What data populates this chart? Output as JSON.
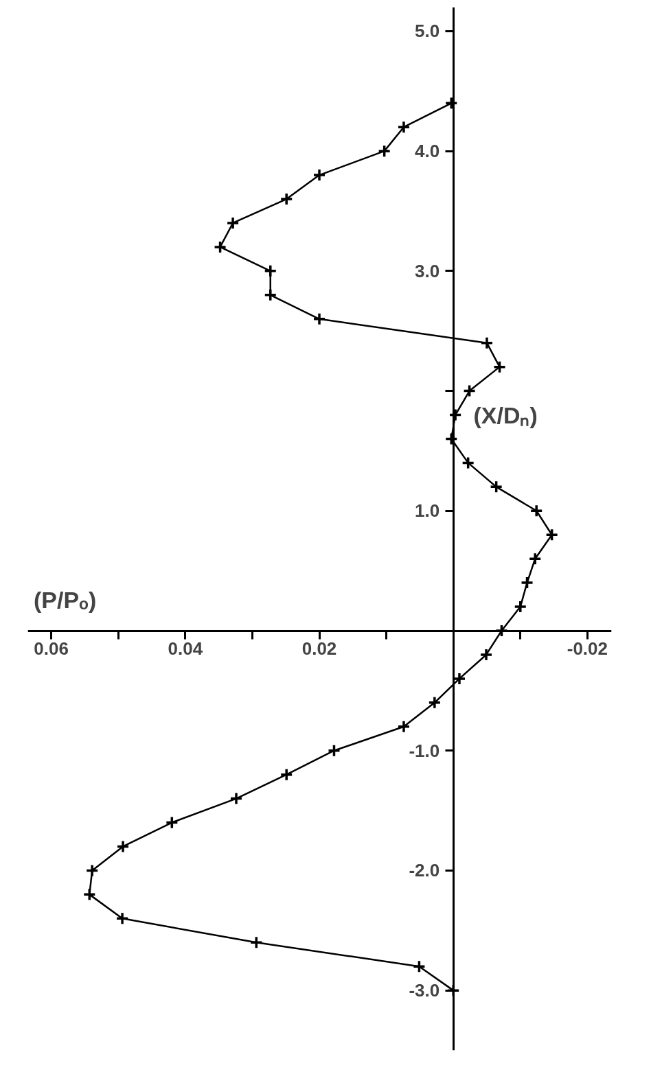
{
  "chart_data": {
    "type": "line",
    "xlabel": "(P/Pₒ)",
    "ylabel": "(X/Dₙ)",
    "xlim": [
      0.0635,
      -0.0236
    ],
    "ylim": [
      -3.5,
      5.2
    ],
    "xticks": [
      {
        "value": 0.06,
        "label": "0.06"
      },
      {
        "value": 0.05,
        "label": null
      },
      {
        "value": 0.04,
        "label": "0.04"
      },
      {
        "value": 0.03,
        "label": null
      },
      {
        "value": 0.02,
        "label": "0.02"
      },
      {
        "value": 0.01,
        "label": null
      },
      {
        "value": -0.01,
        "label": null
      },
      {
        "value": -0.02,
        "label": "-0.02"
      }
    ],
    "yticks": [
      {
        "value": -3,
        "label": "-3.0"
      },
      {
        "value": -2,
        "label": "-2.0"
      },
      {
        "value": -1,
        "label": "-1.0"
      },
      {
        "value": 1,
        "label": "1.0"
      },
      {
        "value": 2,
        "label": null
      },
      {
        "value": 3,
        "label": "3.0"
      },
      {
        "value": 4,
        "label": "4.0"
      },
      {
        "value": 5,
        "label": "5.0"
      }
    ],
    "marker": "cross",
    "line_style": "solid",
    "grid": false,
    "series": [
      {
        "color": "#000000",
        "x": [
          0.0,
          0.0051,
          0.0294,
          0.0494,
          0.0543,
          0.0539,
          0.0493,
          0.042,
          0.0324,
          0.0249,
          0.0178,
          0.0074,
          0.0028,
          -0.0009,
          -0.0049,
          -0.0072,
          -0.01,
          -0.011,
          -0.0122,
          -0.0147,
          -0.0124,
          -0.0064,
          -0.0022,
          0.0003,
          -0.0003,
          -0.0024,
          -0.0069,
          -0.005,
          0.02,
          0.0273,
          0.0273,
          0.0348,
          0.0329,
          0.0249,
          0.02,
          0.0103,
          0.0074,
          0.0003
        ],
        "values": [
          -3.0,
          -2.8,
          -2.6,
          -2.4,
          -2.2,
          -2.0,
          -1.8,
          -1.6,
          -1.4,
          -1.2,
          -1.0,
          -0.8,
          -0.6,
          -0.4,
          -0.2,
          0.0,
          0.2,
          0.4,
          0.6,
          0.8,
          1.0,
          1.2,
          1.4,
          1.6,
          1.8,
          2.0,
          2.2,
          2.4,
          2.6,
          2.8,
          3.0,
          3.2,
          3.4,
          3.6,
          3.8,
          4.0,
          4.2,
          4.4
        ]
      }
    ]
  }
}
